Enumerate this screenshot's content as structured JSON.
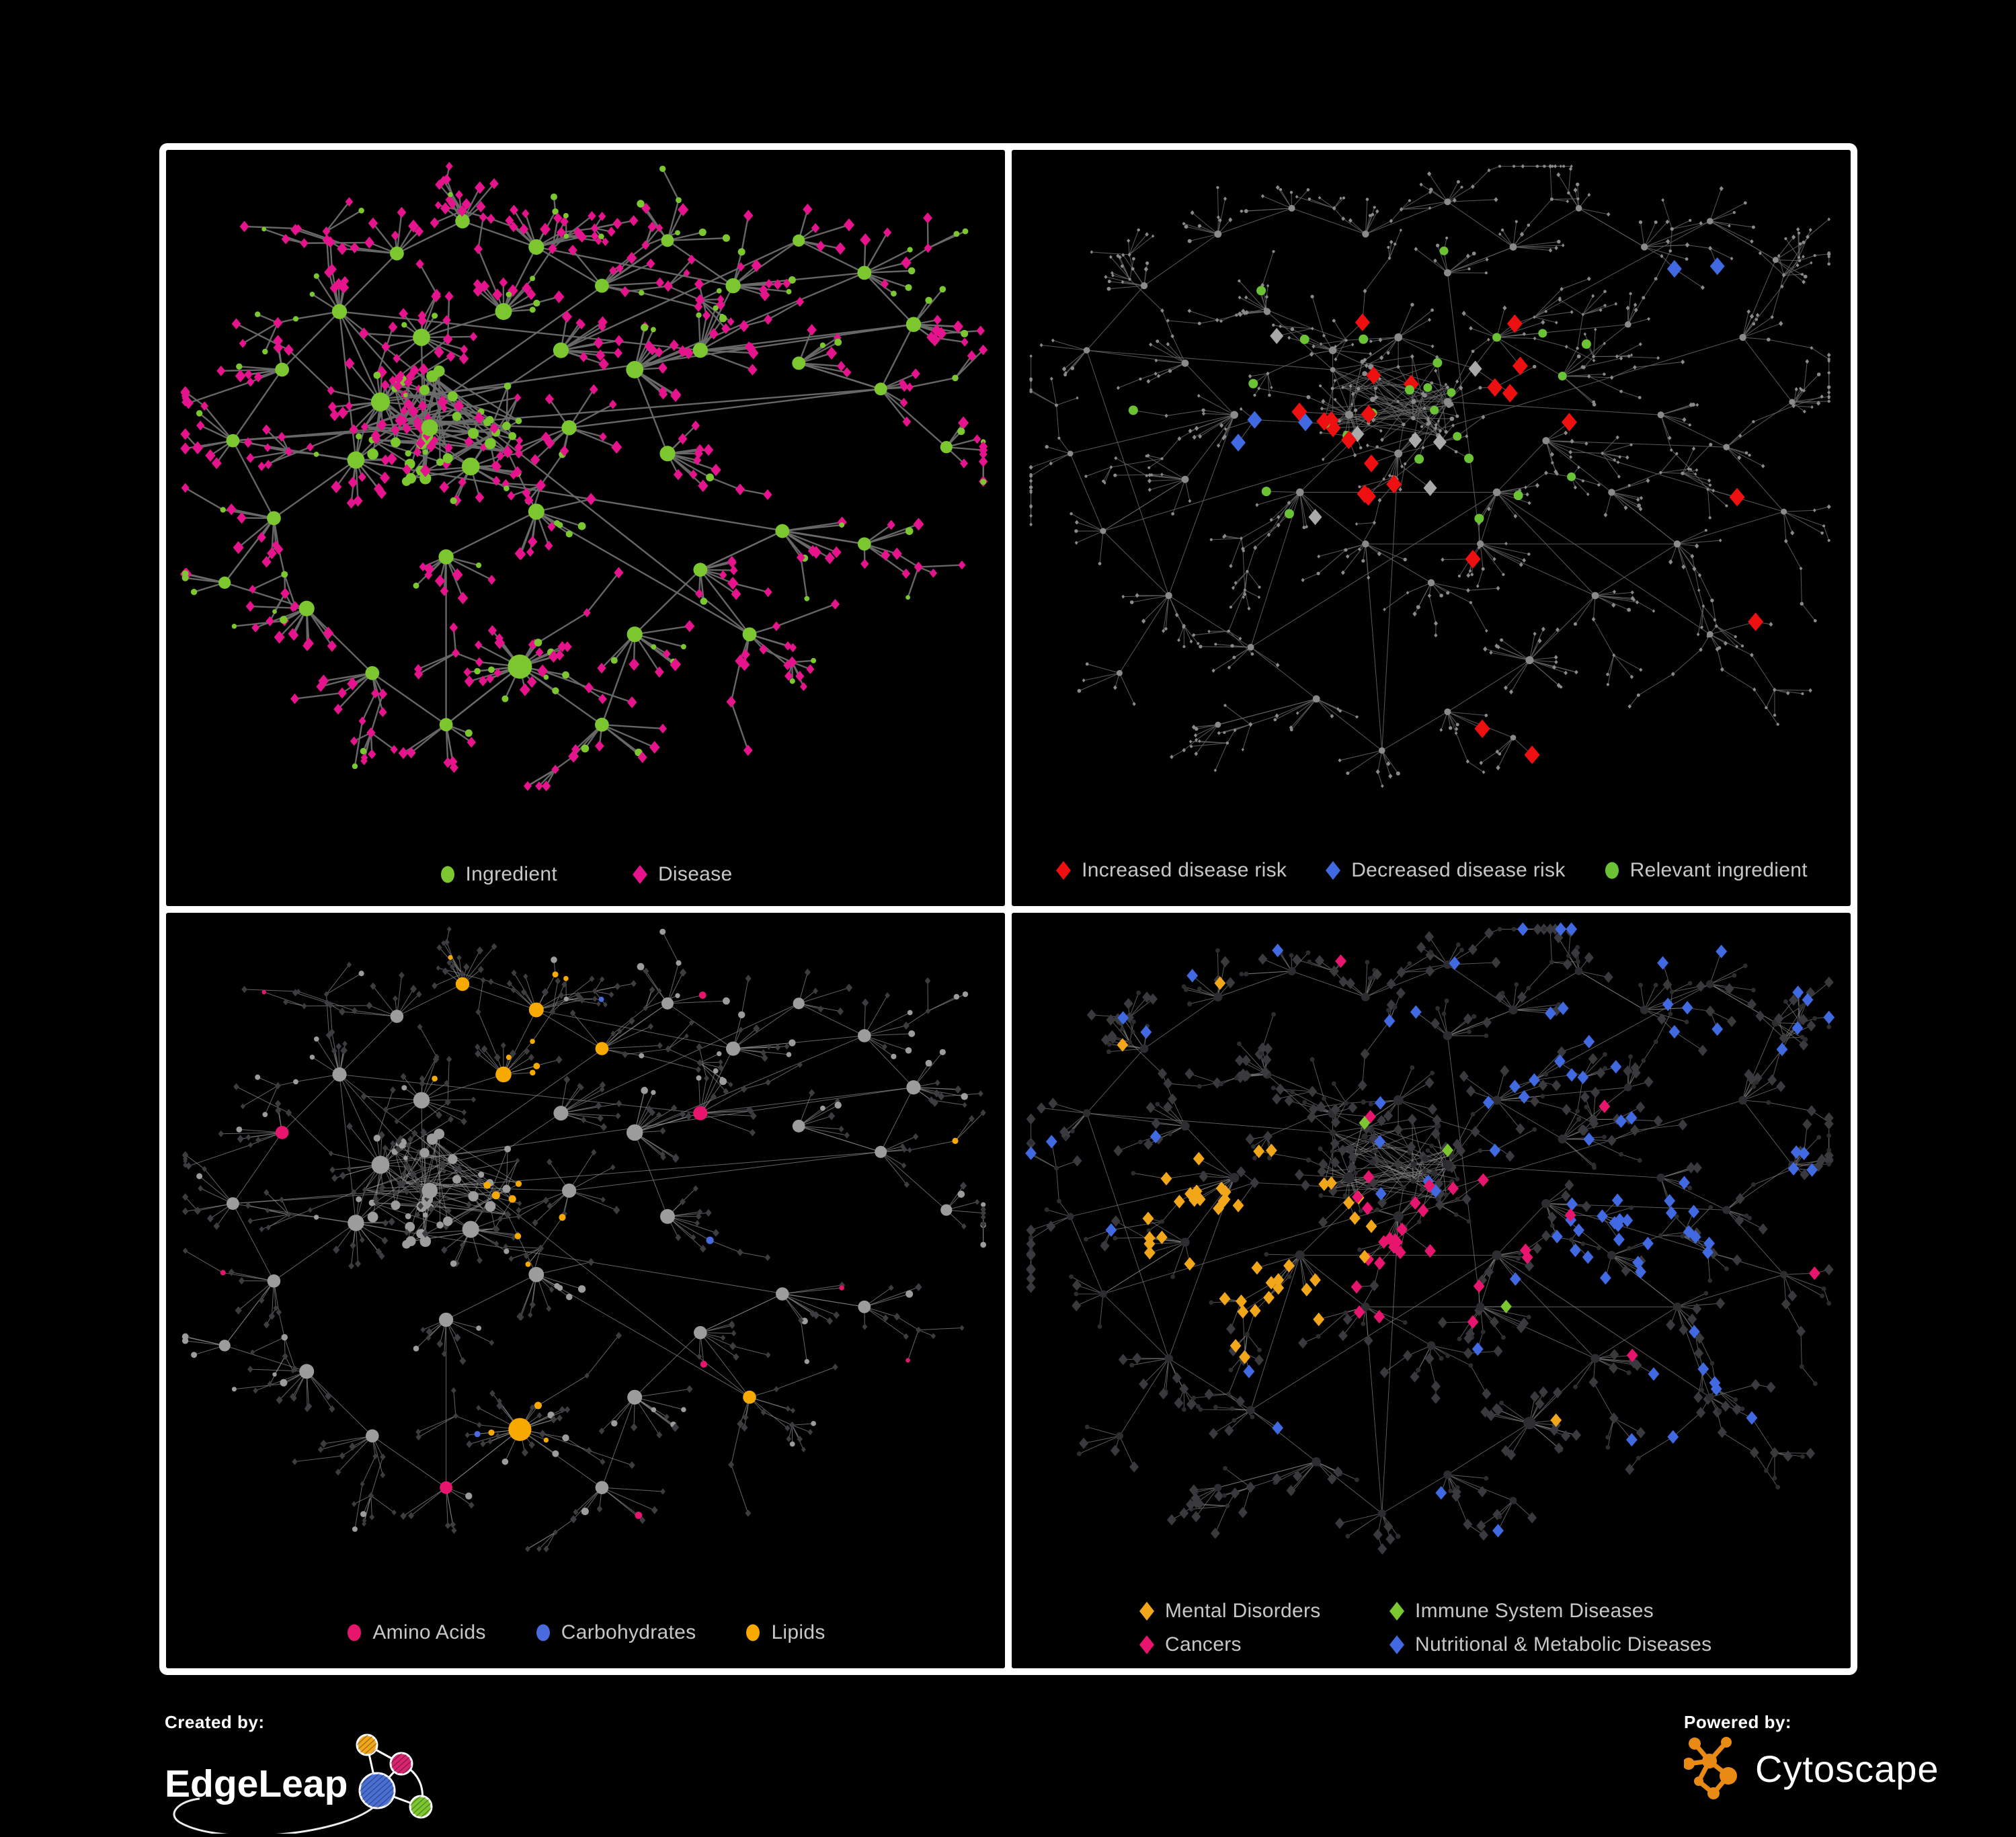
{
  "canvas": {
    "background": "#000000",
    "frame_color": "#ffffff",
    "panel_background": "#000000",
    "legend_text_color": "#c7c7c7"
  },
  "footer": {
    "created_by_label": "Created by:",
    "edgeleap_name": "EdgeLeap",
    "powered_by_label": "Powered by:",
    "cytoscape_name": "Cytoscape",
    "cytoscape_orange": "#e98a15",
    "edgeleap_colors": {
      "orange": "#f2a71b",
      "pink": "#d6246e",
      "blue": "#4a6fd4",
      "green": "#7cc62f"
    }
  },
  "panels": [
    {
      "id": "ingredient-disease",
      "position": "top-left",
      "legend_layout": "row",
      "legend": [
        {
          "label": "Ingredient",
          "shape": "circle",
          "color": "#7cc62f"
        },
        {
          "label": "Disease",
          "shape": "diamond",
          "color": "#e6148c"
        }
      ],
      "style": {
        "edge": "#6b6b6b",
        "circle": "#7cc62f",
        "diamond": "#e6148c"
      }
    },
    {
      "id": "disease-risk",
      "position": "top-right",
      "legend_layout": "row",
      "legend": [
        {
          "label": "Increased disease risk",
          "shape": "diamond",
          "color": "#ee1010"
        },
        {
          "label": "Decreased disease risk",
          "shape": "diamond",
          "color": "#4169e1"
        },
        {
          "label": "Relevant ingredient",
          "shape": "circle",
          "color": "#6bc234"
        }
      ],
      "style": {
        "edge": "#646464",
        "base": "#8a8a8a",
        "red": "#ee1010",
        "blue": "#4169e1",
        "silver": "#a9a9a9",
        "green": "#6bc234"
      }
    },
    {
      "id": "nutrient-classes",
      "position": "bottom-left",
      "legend_layout": "row",
      "legend": [
        {
          "label": "Amino Acids",
          "shape": "circle",
          "color": "#e8156f"
        },
        {
          "label": "Carbohydrates",
          "shape": "circle",
          "color": "#4a6bde"
        },
        {
          "label": "Lipids",
          "shape": "circle",
          "color": "#f7a900"
        }
      ],
      "style": {
        "edge": "#8a8a8a",
        "circle": "#9c9c9c",
        "diamond": "#3c3c41",
        "amino": "#e8156f",
        "carb": "#4a6bde",
        "lipid": "#f7a900"
      }
    },
    {
      "id": "disease-categories",
      "position": "bottom-right",
      "legend_layout": "grid",
      "legend": [
        {
          "label": "Mental Disorders",
          "shape": "diamond",
          "color": "#f2a71b"
        },
        {
          "label": "Immune System Diseases",
          "shape": "diamond",
          "color": "#7cc62f"
        },
        {
          "label": "Cancers",
          "shape": "diamond",
          "color": "#e8156f"
        },
        {
          "label": "Nutritional & Metabolic Diseases",
          "shape": "diamond",
          "color": "#4169e1"
        }
      ],
      "style": {
        "edge": "#858585",
        "circle": "#2d2d31",
        "diamond": "#3a3a3e",
        "mental": "#f2a71b",
        "immune": "#7cc62f",
        "cancer": "#e8156f",
        "nutritional": "#4169e1"
      }
    }
  ],
  "chart_data": [
    {
      "panel": "top-left",
      "type": "network",
      "description": "Ingredient-disease association network: green circle nodes are ingredients, pink diamond nodes are diseases, gray edges are associations.",
      "legend": [
        "Ingredient",
        "Disease"
      ],
      "node_shapes": {
        "circle": "Ingredient",
        "diamond": "Disease"
      },
      "node_colors": {
        "Ingredient": "#7cc62f",
        "Disease": "#e6148c"
      }
    },
    {
      "panel": "top-right",
      "type": "network",
      "description": "Same association network with risk highlighting: red diamonds = increased disease risk, blue diamonds = decreased disease risk, green circles = relevant ingredients; all other nodes small gray.",
      "legend": [
        "Increased disease risk",
        "Decreased disease risk",
        "Relevant ingredient"
      ],
      "node_colors": {
        "Increased disease risk": "#ee1010",
        "Decreased disease risk": "#4169e1",
        "Relevant ingredient": "#6bc234"
      }
    },
    {
      "panel": "bottom-left",
      "type": "network",
      "description": "Ingredient nodes (circles) classified by nutrient class: pink = Amino Acids, blue = Carbohydrates, orange = Lipids; unclassified circles gray, disease diamonds dark gray.",
      "legend": [
        "Amino Acids",
        "Carbohydrates",
        "Lipids"
      ],
      "node_colors": {
        "Amino Acids": "#e8156f",
        "Carbohydrates": "#4a6bde",
        "Lipids": "#f7a900"
      }
    },
    {
      "panel": "bottom-right",
      "type": "network",
      "description": "Disease nodes (diamonds) classified by category: orange = Mental Disorders, green = Immune System Diseases, pink = Cancers, blue = Nutritional & Metabolic Diseases; unclassified diamonds dark gray.",
      "legend": [
        "Mental Disorders",
        "Immune System Diseases",
        "Cancers",
        "Nutritional & Metabolic Diseases"
      ],
      "node_colors": {
        "Mental Disorders": "#f2a71b",
        "Immune System Diseases": "#7cc62f",
        "Cancers": "#e8156f",
        "Nutritional & Metabolic Diseases": "#4169e1"
      }
    }
  ]
}
